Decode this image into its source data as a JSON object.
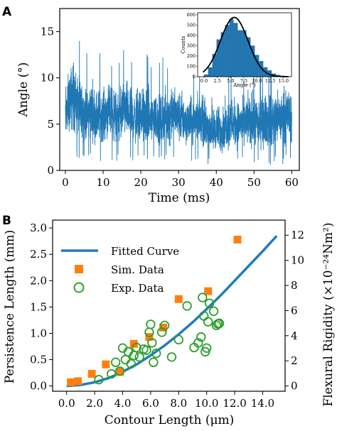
{
  "panels": {
    "a_letter": "A",
    "b_letter": "B"
  },
  "colors": {
    "signal": "#1f77b4",
    "fit_curve": "#1f7bbf",
    "sim": "#ff7f0e",
    "exp": "#2ca02c",
    "inset_bar": "#1f77b4",
    "inset_curve": "#000000"
  },
  "chart_data": [
    {
      "type": "line",
      "panel": "A",
      "xlabel": "Time (ms)",
      "ylabel": "Angle (°)",
      "xlim": [
        -1.5,
        62
      ],
      "ylim": [
        0,
        17.5
      ],
      "xticks": [
        0,
        10,
        20,
        30,
        40,
        50,
        60
      ],
      "yticks": [
        0,
        5,
        10,
        15
      ],
      "grid": false,
      "series": [
        {
          "description_level": "noisy time trace",
          "x": [
            0,
            1,
            2,
            3,
            4,
            5,
            6,
            7,
            8,
            9,
            10,
            11,
            12,
            13,
            14,
            15,
            16,
            17,
            18,
            19,
            20,
            21,
            22,
            23,
            24,
            25,
            26,
            27,
            28,
            29,
            30,
            31,
            32,
            33,
            34,
            35,
            36,
            37,
            38,
            39,
            40,
            41,
            42,
            43,
            44,
            45,
            46,
            47,
            48,
            49,
            50,
            51,
            52,
            53,
            54,
            55,
            56,
            57,
            58,
            59,
            60
          ],
          "y_mean": [
            5.5,
            7.5,
            8.5,
            7.0,
            6.5,
            6.0,
            6.0,
            6.5,
            5.5,
            6.0,
            6.0,
            6.5,
            6.5,
            6.0,
            5.5,
            6.5,
            6.5,
            6.0,
            5.5,
            5.5,
            6.0,
            5.5,
            5.5,
            5.5,
            5.5,
            5.0,
            5.5,
            6.0,
            6.0,
            6.0,
            5.5,
            5.5,
            5.5,
            5.0,
            5.0,
            6.0,
            5.5,
            5.0,
            4.5,
            4.0,
            4.5,
            4.0,
            4.5,
            5.0,
            5.5,
            5.0,
            5.0,
            5.5,
            5.5,
            5.5,
            5.0,
            5.0,
            5.0,
            5.5,
            5.5,
            5.5,
            5.5,
            5.5,
            6.0,
            6.0,
            5.5
          ],
          "y_max": [
            14.0,
            15.0,
            16.5,
            15.5,
            13.5,
            14.0,
            12.5,
            14.5,
            13.0,
            13.0,
            12.5,
            12.5,
            12.5,
            12.0,
            12.5,
            14.0,
            14.0,
            13.5,
            12.5,
            13.5,
            14.0,
            12.5,
            13.0,
            12.0,
            13.0,
            12.0,
            13.0,
            11.5,
            12.5,
            13.0,
            13.0,
            12.5,
            11.0,
            11.5,
            11.5,
            12.5,
            11.0,
            11.5,
            11.0,
            12.0,
            10.0,
            11.0,
            11.0,
            11.0,
            12.0,
            11.0,
            10.5,
            10.5,
            11.5,
            12.0,
            13.5,
            11.0,
            11.5,
            12.0,
            11.5,
            11.5,
            12.5,
            11.5,
            13.0,
            13.5,
            12.5
          ],
          "y_min": [
            1.0,
            2.0,
            1.0,
            1.0,
            1.0,
            1.5,
            1.0,
            1.5,
            1.0,
            1.0,
            1.0,
            1.0,
            1.0,
            1.0,
            1.0,
            1.0,
            1.0,
            1.0,
            1.0,
            1.0,
            1.0,
            1.0,
            1.0,
            1.0,
            1.0,
            1.0,
            1.0,
            1.0,
            1.0,
            1.0,
            1.0,
            1.0,
            1.0,
            1.0,
            1.0,
            1.0,
            0.5,
            0.5,
            0.5,
            0.5,
            0.5,
            0.5,
            0.5,
            0.5,
            0.5,
            0.5,
            0.5,
            0.5,
            0.5,
            0.5,
            0.5,
            0.5,
            0.5,
            0.5,
            0.5,
            0.5,
            0.5,
            0.5,
            0.5,
            1.0,
            1.0
          ]
        }
      ],
      "inset": {
        "type": "bar",
        "xlabel": "Angle (°)",
        "ylabel": "Counts",
        "xlim": [
          -1.2,
          16.5
        ],
        "ylim": [
          0,
          620
        ],
        "xticks": [
          0.0,
          2.5,
          5.0,
          7.5,
          10.0,
          12.5,
          15.0
        ],
        "xticklabels": [
          "0.0",
          "2.5",
          "5.0",
          "7.5",
          "10.0",
          "12.5",
          "15.0"
        ],
        "yticks": [
          0,
          100,
          200,
          300,
          400,
          500,
          600
        ],
        "bin_width": 0.8,
        "bin_starts": [
          0,
          0.8,
          1.6,
          2.4,
          3.2,
          4.0,
          4.8,
          5.6,
          6.4,
          7.2,
          8.0,
          8.8,
          9.6,
          10.4,
          11.2,
          12.0,
          12.8,
          13.6,
          14.4,
          15.2
        ],
        "counts": [
          20,
          90,
          220,
          360,
          430,
          500,
          560,
          520,
          450,
          450,
          380,
          300,
          210,
          150,
          90,
          60,
          30,
          15,
          8,
          5
        ],
        "fit_peak": [
          5.7,
          575
        ],
        "fit_sigma": 2.6
      }
    },
    {
      "type": "scatter",
      "panel": "B",
      "xlabel": "Contour Length (μm)",
      "ylabel": "Persistence Length (mm)",
      "ylabel_right": "Flexural Rigidity (×10⁻²⁴Nm²)",
      "xlim": [
        -1.0,
        15.6
      ],
      "ylim": [
        -0.1,
        3.15
      ],
      "ylim_right": [
        -0.42,
        13.2
      ],
      "xticks": [
        0,
        2,
        4,
        6,
        8,
        10,
        12,
        14
      ],
      "xticklabels": [
        "0.0",
        "2.0",
        "4.0",
        "6.0",
        "8.0",
        "10.0",
        "12.0",
        "14.0"
      ],
      "yticks": [
        0.0,
        0.5,
        1.0,
        1.5,
        2.0,
        2.5,
        3.0
      ],
      "yticklabels": [
        "0.0",
        "0.5",
        "1.0",
        "1.5",
        "2.0",
        "2.5",
        "3.0"
      ],
      "yticks_right": [
        0,
        2,
        4,
        6,
        8,
        10,
        12
      ],
      "legend_position": "upper-left",
      "series": [
        {
          "name": "Fitted Curve",
          "kind": "line",
          "x": [
            0,
            1,
            2,
            3,
            4,
            5,
            6,
            7,
            8,
            9,
            10,
            11,
            12,
            13,
            14,
            15
          ],
          "y": [
            0.0,
            0.02,
            0.07,
            0.15,
            0.27,
            0.41,
            0.58,
            0.77,
            0.98,
            1.21,
            1.46,
            1.72,
            2.0,
            2.28,
            2.56,
            2.85
          ]
        },
        {
          "name": "Sim. Data",
          "kind": "square",
          "x": [
            0.3,
            0.8,
            1.8,
            2.8,
            3.8,
            4.8,
            5.9,
            6.9,
            8.0,
            10.1,
            12.2
          ],
          "y": [
            0.07,
            0.09,
            0.23,
            0.41,
            0.27,
            0.8,
            0.93,
            1.11,
            1.65,
            1.8,
            2.78
          ]
        },
        {
          "name": "Exp. Data",
          "kind": "circle",
          "x": [
            2.3,
            3.2,
            3.5,
            3.8,
            4.0,
            4.2,
            4.4,
            4.6,
            4.8,
            5.0,
            5.2,
            5.5,
            5.7,
            5.9,
            6.0,
            6.1,
            6.2,
            6.4,
            6.8,
            7.0,
            7.5,
            8.0,
            8.6,
            9.1,
            9.4,
            9.6,
            9.7,
            9.8,
            9.9,
            10.0,
            10.1,
            10.2,
            10.5,
            10.7,
            10.8,
            10.9
          ],
          "y": [
            0.12,
            0.23,
            0.45,
            0.28,
            0.72,
            0.5,
            0.65,
            0.42,
            0.58,
            0.73,
            0.55,
            0.7,
            0.68,
            1.02,
            1.17,
            0.82,
            0.45,
            0.62,
            1.02,
            1.15,
            0.55,
            0.88,
            1.52,
            0.73,
            0.82,
            0.93,
            1.68,
            1.33,
            0.65,
            0.72,
            1.22,
            1.57,
            1.42,
            1.15,
            1.18,
            1.19
          ]
        }
      ]
    }
  ]
}
